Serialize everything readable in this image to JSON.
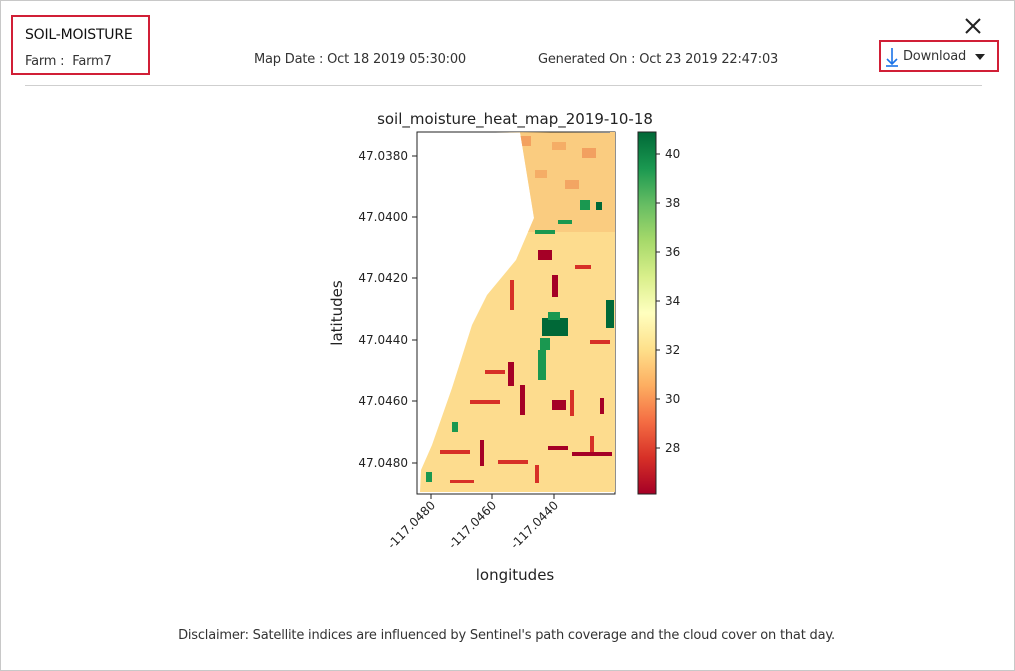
{
  "header": {
    "title": "SOIL-MOISTURE",
    "farm_label": "Farm :",
    "farm_value": "Farm7",
    "map_date": "Map Date : Oct 18 2019 05:30:00",
    "generated_on": "Generated On : Oct 23 2019 22:47:03"
  },
  "toolbar": {
    "download_label": "Download",
    "close_icon": "close-icon",
    "download_icon": "download-arrow-icon",
    "dropdown_icon": "caret-down-icon"
  },
  "colors": {
    "highlight_border": "#d11f36",
    "download_icon": "#1a73e8",
    "colormap": "RdYlGn"
  },
  "chart_data": {
    "type": "heatmap",
    "title": "soil_moisture_heat_map_2019-10-18",
    "xlabel": "longitudes",
    "ylabel": "latitudes",
    "x_ticks": [
      "-117.0480",
      "-117.0460",
      "-117.0440"
    ],
    "y_ticks": [
      "47.0380",
      "47.0400",
      "47.0420",
      "47.0440",
      "47.0460",
      "47.0480"
    ],
    "colorbar_ticks": [
      "28",
      "30",
      "32",
      "34",
      "36",
      "38",
      "40"
    ],
    "colorbar_range": [
      26,
      41
    ],
    "colormap": "RdYlGn",
    "dominant_value_range": [
      30,
      32
    ]
  },
  "footer": {
    "disclaimer": "Disclaimer: Satellite indices are influenced by Sentinel's path coverage and the cloud cover on that day."
  }
}
